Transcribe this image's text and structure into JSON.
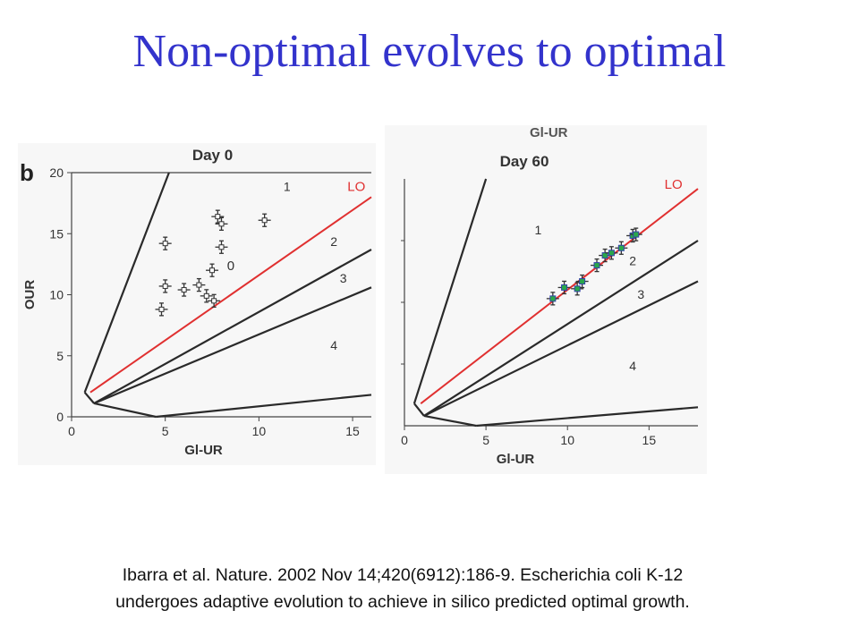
{
  "slide": {
    "title": "Non-optimal evolves to optimal",
    "citation_line1": "Ibarra et al.  Nature. 2002 Nov 14;420(6912):186-9. Escherichia coli K-12",
    "citation_line2": "undergoes adaptive evolution to achieve in silico predicted optimal growth."
  },
  "figure": {
    "panel_letter": "b",
    "cropped_top_text": "Gl-UR"
  },
  "colors": {
    "line_of_optimality": "#e03030",
    "boundary": "#2a2a2a",
    "point": "#333333",
    "day60_marker_fill": "#2aa84a",
    "day60_marker_edge": "#3344aa",
    "title": "#3333cc"
  },
  "chart_data": [
    {
      "type": "scatter",
      "title": "Day 0",
      "xlabel": "Gl-UR",
      "ylabel": "OUR",
      "xlim": [
        0,
        16
      ],
      "ylim": [
        0,
        20
      ],
      "xticks": [
        "0",
        "5",
        "10",
        "15"
      ],
      "yticks": [
        "0",
        "5",
        "10",
        "15",
        "20"
      ],
      "region_labels": [
        {
          "text": "1",
          "x": 11.5,
          "y": 18.5
        },
        {
          "text": "2",
          "x": 14,
          "y": 14
        },
        {
          "text": "3",
          "x": 14.5,
          "y": 11
        },
        {
          "text": "4",
          "x": 14,
          "y": 5.5
        }
      ],
      "annotations": [
        {
          "text": "LO",
          "x": 15.2,
          "y": 18.5
        },
        {
          "text": "0",
          "x": 8.5,
          "y": 12
        }
      ],
      "lines": [
        {
          "name": "LO",
          "points": [
            [
              1,
              2
            ],
            [
              16,
              18
            ]
          ]
        },
        {
          "points": [
            [
              0.7,
              2
            ],
            [
              5.2,
              20
            ]
          ]
        },
        {
          "points": [
            [
              0.7,
              2
            ],
            [
              1.2,
              1.1
            ]
          ]
        },
        {
          "points": [
            [
              1.2,
              1.1
            ],
            [
              16,
              13.7
            ]
          ]
        },
        {
          "points": [
            [
              1.2,
              1.1
            ],
            [
              16,
              10.6
            ]
          ]
        },
        {
          "points": [
            [
              1.2,
              1.1
            ],
            [
              4.5,
              0
            ]
          ]
        },
        {
          "points": [
            [
              4.5,
              0
            ],
            [
              16,
              1.8
            ]
          ]
        }
      ],
      "series": [
        {
          "marker": "cross",
          "points": [
            {
              "x": 4.8,
              "y": 8.8
            },
            {
              "x": 5.0,
              "y": 10.7
            },
            {
              "x": 5.0,
              "y": 14.2
            },
            {
              "x": 6.0,
              "y": 10.4
            },
            {
              "x": 6.8,
              "y": 10.8
            },
            {
              "x": 7.2,
              "y": 9.9
            },
            {
              "x": 7.5,
              "y": 12.0
            },
            {
              "x": 7.6,
              "y": 9.5
            },
            {
              "x": 7.8,
              "y": 16.4
            },
            {
              "x": 8.0,
              "y": 13.9
            },
            {
              "x": 8.0,
              "y": 15.8
            },
            {
              "x": 10.3,
              "y": 16.1
            }
          ]
        }
      ]
    },
    {
      "type": "scatter",
      "title": "Day 60",
      "xlabel": "Gl-UR",
      "ylabel": "",
      "xlim": [
        0,
        18
      ],
      "ylim": [
        0,
        20
      ],
      "xticks": [
        "0",
        "5",
        "10",
        "15"
      ],
      "region_labels": [
        {
          "text": "1",
          "x": 8.2,
          "y": 15.5
        },
        {
          "text": "2",
          "x": 14,
          "y": 13
        },
        {
          "text": "3",
          "x": 14.5,
          "y": 10.3
        },
        {
          "text": "4",
          "x": 14,
          "y": 4.5
        }
      ],
      "annotations": [
        {
          "text": "LO",
          "x": 16.5,
          "y": 19.2
        }
      ],
      "lines": [
        {
          "name": "LO",
          "points": [
            [
              1,
              1.8
            ],
            [
              18,
              19.2
            ]
          ]
        },
        {
          "points": [
            [
              0.6,
              1.8
            ],
            [
              5,
              20
            ]
          ]
        },
        {
          "points": [
            [
              0.6,
              1.8
            ],
            [
              1.2,
              0.8
            ]
          ]
        },
        {
          "points": [
            [
              1.2,
              0.8
            ],
            [
              18,
              15
            ]
          ]
        },
        {
          "points": [
            [
              1.2,
              0.8
            ],
            [
              18,
              11.7
            ]
          ]
        },
        {
          "points": [
            [
              1.2,
              0.8
            ],
            [
              4.4,
              0
            ]
          ]
        },
        {
          "points": [
            [
              4.4,
              0
            ],
            [
              18,
              1.5
            ]
          ]
        }
      ],
      "series": [
        {
          "marker": "filled-square",
          "points": [
            {
              "x": 9.1,
              "y": 10.3
            },
            {
              "x": 9.8,
              "y": 11.2
            },
            {
              "x": 10.6,
              "y": 11.1
            },
            {
              "x": 10.9,
              "y": 11.7
            },
            {
              "x": 11.8,
              "y": 13.0
            },
            {
              "x": 12.3,
              "y": 13.8
            },
            {
              "x": 12.7,
              "y": 14.0
            },
            {
              "x": 13.3,
              "y": 14.4
            },
            {
              "x": 14.0,
              "y": 15.4
            },
            {
              "x": 14.2,
              "y": 15.5
            }
          ]
        }
      ]
    }
  ]
}
